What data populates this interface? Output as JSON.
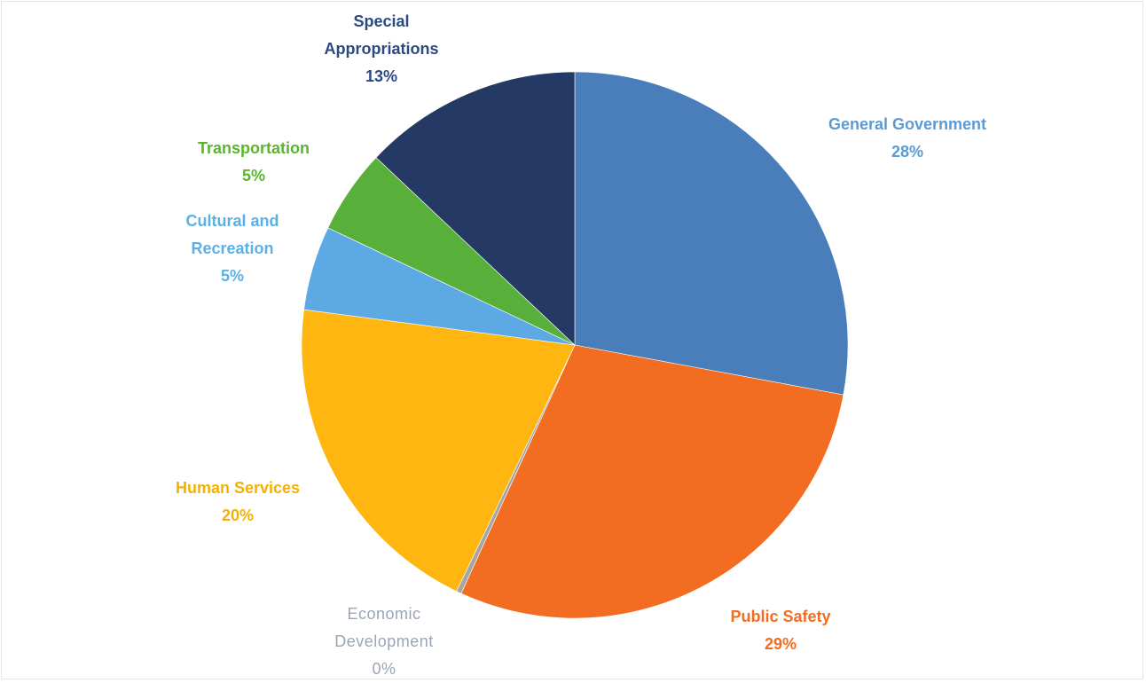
{
  "chart_data": {
    "type": "pie",
    "start_angle_deg": 0,
    "direction": "clockwise",
    "slices": [
      {
        "name": "General Government",
        "value": 28,
        "label_lines": [
          "General Government"
        ],
        "percent_label": "28%",
        "color": "#4a7ebb",
        "label_color": "#5b9bd5"
      },
      {
        "name": "Public Safety",
        "value": 29,
        "label_lines": [
          "Public Safety"
        ],
        "percent_label": "29%",
        "color": "#f26c21",
        "label_color": "#f26c21"
      },
      {
        "name": "Economic Development",
        "value": 0.3,
        "label_lines": [
          "Economic",
          "Development"
        ],
        "percent_label": "0%",
        "color": "#a5a5a5",
        "label_color": "#9aa5b8"
      },
      {
        "name": "Human Services",
        "value": 20,
        "label_lines": [
          "Human Services"
        ],
        "percent_label": "20%",
        "color": "#ffb611",
        "label_color": "#f5b000"
      },
      {
        "name": "Cultural and Recreation",
        "value": 5,
        "label_lines": [
          "Cultural and",
          "Recreation"
        ],
        "percent_label": "5%",
        "color": "#5ca9e4",
        "label_color": "#5ab0e8"
      },
      {
        "name": "Transportation",
        "value": 5,
        "label_lines": [
          "Transportation"
        ],
        "percent_label": "5%",
        "color": "#58b03a",
        "label_color": "#5ab52e"
      },
      {
        "name": "Special Appropriations",
        "value": 13,
        "label_lines": [
          "Special",
          "Appropriations"
        ],
        "percent_label": "13%",
        "color": "#243a64",
        "label_color": "#2a4a80"
      }
    ]
  }
}
